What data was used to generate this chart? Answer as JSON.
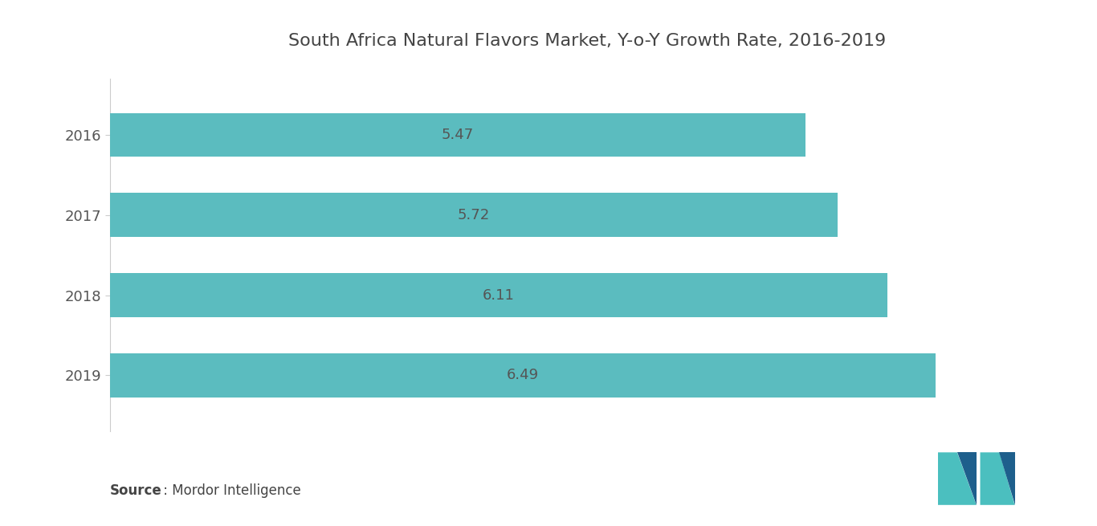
{
  "title": "South Africa Natural Flavors Market, Y-o-Y Growth Rate, 2016-2019",
  "years": [
    "2019",
    "2018",
    "2017",
    "2016"
  ],
  "values": [
    6.49,
    6.11,
    5.72,
    5.47
  ],
  "bar_color": "#5bbcbf",
  "bar_height": 0.55,
  "value_label_color": "#555555",
  "value_label_fontsize": 13,
  "ytick_fontsize": 13,
  "title_fontsize": 16,
  "title_color": "#444444",
  "background_color": "#ffffff",
  "source_bold": "Source",
  "source_text": " : Mordor Intelligence",
  "source_fontsize": 12,
  "xlim": [
    0,
    7.5
  ],
  "spine_color": "#cccccc",
  "logo_teal": "#4bbfbf",
  "logo_dark": "#1e5f8c"
}
